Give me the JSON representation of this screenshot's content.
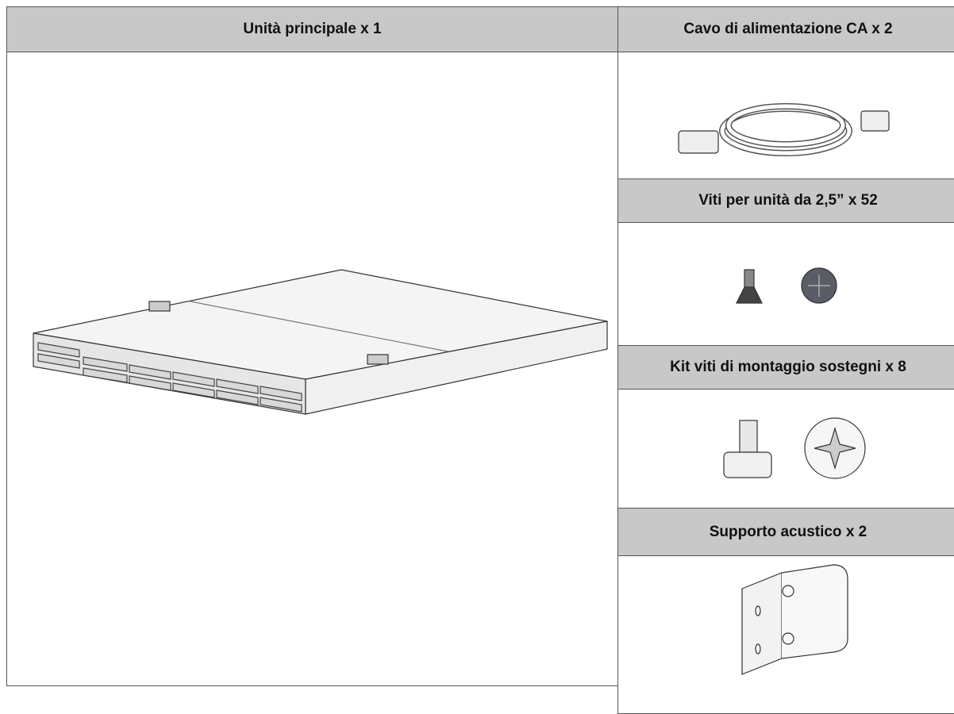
{
  "main": {
    "title": "Unità principale x 1"
  },
  "items": [
    {
      "title": "Cavo di alimentazione CA x 2"
    },
    {
      "title": "Viti per unità da 2,5” x 52"
    },
    {
      "title": "Kit viti di montaggio sostegni x 8"
    },
    {
      "title": "Supporto acustico x 2"
    }
  ]
}
